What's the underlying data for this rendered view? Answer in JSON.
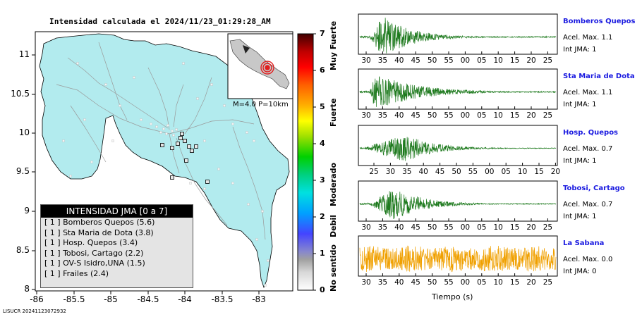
{
  "title": "Intensidad calculada el 2024/11/23_01:29:28_AM",
  "footer_id": "LISUCR 20241123072932",
  "map": {
    "lat_ticks": [
      "11",
      "10.5",
      "10",
      "9.5",
      "9",
      "8.5",
      "8"
    ],
    "lon_ticks": [
      "-86",
      "-85.5",
      "-85",
      "-84.5",
      "-84",
      "-83.5",
      "-83"
    ],
    "inset_label": "M=4.0 P=10km",
    "land_color": "#b2ebee",
    "sea_color": "#ffffff",
    "epicenter_color": "#e02020"
  },
  "colorbar": {
    "numbers": [
      "7",
      "6",
      "5",
      "4",
      "3",
      "2",
      "1",
      "0"
    ],
    "categories": [
      "Muy Fuerte",
      "Fuerte",
      "Moderado",
      "Debil",
      "No sentido"
    ]
  },
  "legend": {
    "header": "INTENSIDAD JMA [0 a 7]",
    "rows": [
      "[ 1 ]  Bomberos Quepos (5.6)",
      "[ 1 ]  Sta Maria de Dota (3.8)",
      "[ 1 ]  Hosp. Quepos (3.4)",
      "[ 1 ]  Tobosi, Cartago (2.2)",
      "[ 1 ]  OV-S Isidro,UNA (1.5)",
      "[ 1 ]  Frailes (2.4)"
    ]
  },
  "stations": [
    {
      "name": "Bomberos Quepos",
      "accel": "Acel. Max. 1.1",
      "int": "Int JMA: 1",
      "ticks": [
        "30",
        "35",
        "40",
        "45",
        "50",
        "55",
        "00",
        "05",
        "10",
        "15",
        "20",
        "25"
      ],
      "color": "#1e7a1e",
      "amp": 1.0
    },
    {
      "name": "Sta Maria de Dota",
      "accel": "Acel. Max. 1.1",
      "int": "Int JMA: 1",
      "ticks": [
        "30",
        "35",
        "40",
        "45",
        "50",
        "55",
        "00",
        "05",
        "10",
        "15",
        "20",
        "25"
      ],
      "color": "#1e7a1e",
      "amp": 0.9
    },
    {
      "name": "Hosp. Quepos",
      "accel": "Acel. Max. 0.7",
      "int": "Int JMA: 1",
      "ticks": [
        "25",
        "30",
        "35",
        "40",
        "45",
        "50",
        "55",
        "00",
        "05",
        "10",
        "15",
        "20"
      ],
      "color": "#1e7a1e",
      "amp": 0.6
    },
    {
      "name": "Tobosi, Cartago",
      "accel": "Acel. Max. 0.7",
      "int": "Int JMA: 1",
      "ticks": [
        "30",
        "35",
        "40",
        "45",
        "50",
        "55",
        "00",
        "05",
        "10",
        "15",
        "20",
        "25"
      ],
      "color": "#1e7a1e",
      "amp": 0.75
    },
    {
      "name": "La Sabana",
      "accel": "Acel. Max. 0.0",
      "int": "Int JMA: 0",
      "ticks": [
        "30",
        "35",
        "40",
        "45",
        "50",
        "55",
        "00",
        "05",
        "10",
        "15",
        "20",
        "25"
      ],
      "color": "#f0a000",
      "amp": 0.35
    }
  ],
  "xlabel": "Tiempo (s)"
}
